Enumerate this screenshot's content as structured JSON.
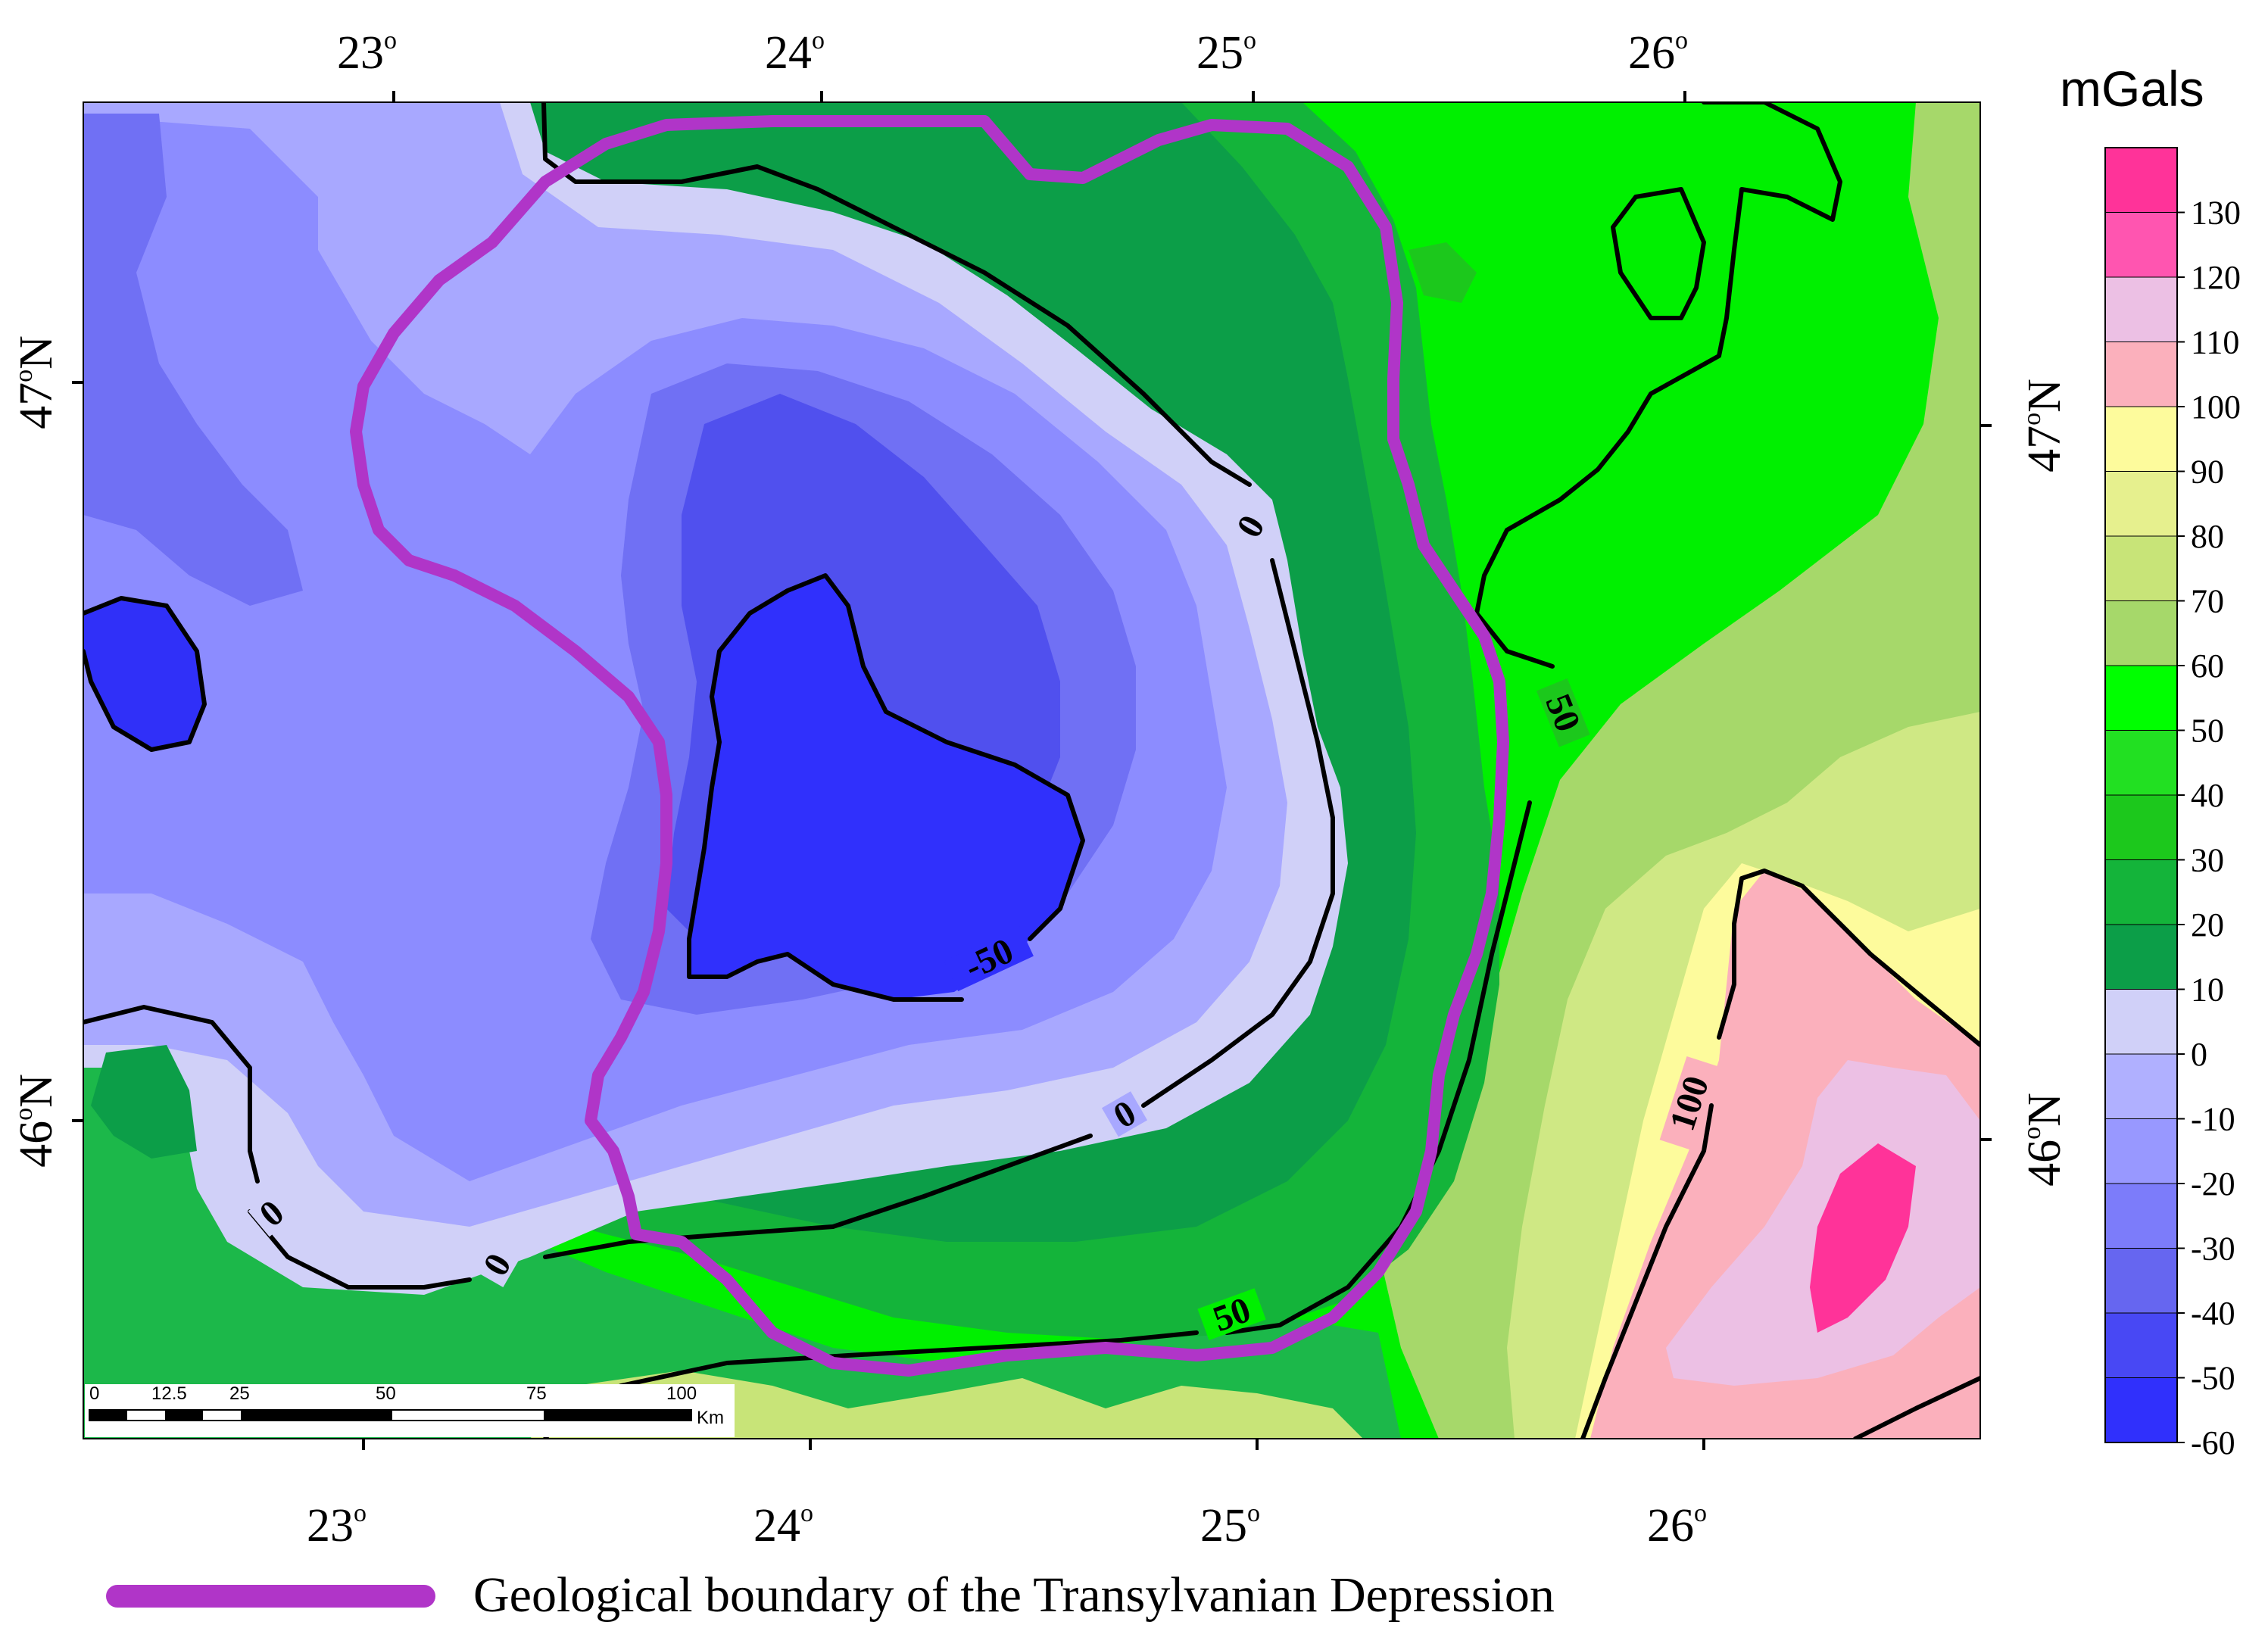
{
  "units_title": "mGals",
  "axes": {
    "top_longitudes": [
      "23",
      "24",
      "25",
      "26"
    ],
    "bottom_longitudes": [
      "23",
      "24",
      "25",
      "26"
    ],
    "left_latitudes": [
      "47",
      "46"
    ],
    "right_latitudes": [
      "47",
      "46"
    ],
    "degree_mark": "o",
    "north_suffix": "N"
  },
  "colorbar": {
    "ticks": [
      "130",
      "120",
      "110",
      "100",
      "90",
      "80",
      "70",
      "60",
      "50",
      "40",
      "30",
      "20",
      "10",
      "0",
      "-10",
      "-20",
      "-30",
      "-40",
      "-50",
      "-60"
    ],
    "colors": [
      "#ff3399",
      "#ff55b0",
      "#ecc0e4",
      "#fbb0bc",
      "#fdfb9c",
      "#e6f08e",
      "#c8e478",
      "#a6d86a",
      "#00ff00",
      "#22e022",
      "#1cc81c",
      "#14b43a",
      "#0c9e48",
      "#d0d0f8",
      "#b0b0ff",
      "#9898ff",
      "#7c7cfa",
      "#6666f0",
      "#4848f4",
      "#3030fc"
    ]
  },
  "contour_labels": [
    "0",
    "0",
    "0",
    "0",
    "-50",
    "50",
    "50",
    "100"
  ],
  "scale_bar": {
    "ticks": [
      "0",
      "12.5",
      "25",
      "50",
      "75",
      "100"
    ],
    "unit": "Km"
  },
  "legend": {
    "label": "Geological boundary of the Transylvanian Depression",
    "color": "#b035c8"
  },
  "colors": {
    "boundary": "#b035c8",
    "contour": "#000000"
  }
}
